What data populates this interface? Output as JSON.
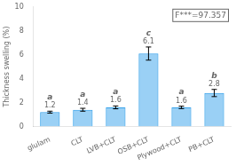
{
  "chart_data": {
    "type": "bar",
    "categories": [
      "glulam",
      "CLT",
      "LVB+CLT",
      "OSB+CLT",
      "Plywood+CLT",
      "PB+CLT"
    ],
    "values": [
      1.2,
      1.4,
      1.6,
      6.1,
      1.6,
      2.8
    ],
    "errors": [
      0.08,
      0.12,
      0.12,
      0.55,
      0.1,
      0.3
    ],
    "letters": [
      "a",
      "a",
      "a",
      "c",
      "a",
      "b"
    ],
    "data_labels": true,
    "ylabel": "Thickness swelling (%)",
    "annotation": "F***=97.357",
    "ylim": [
      0,
      10
    ],
    "yticks": [
      0,
      2,
      4,
      6,
      8,
      10
    ],
    "grid": false
  }
}
